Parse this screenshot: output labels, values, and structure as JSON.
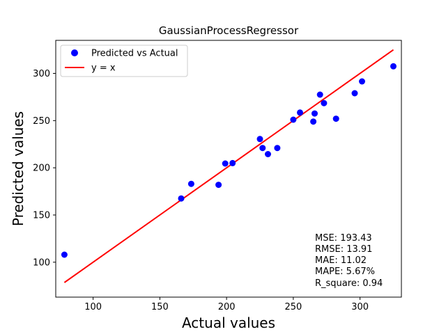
{
  "chart_data": {
    "type": "scatter",
    "title": "GaussianProcessRegressor",
    "xlabel": "Actual values",
    "ylabel": "Predicted values",
    "xlim": [
      72,
      331
    ],
    "ylim": [
      63,
      335
    ],
    "xticks": [
      100,
      150,
      200,
      250,
      300
    ],
    "yticks": [
      100,
      150,
      200,
      250,
      300
    ],
    "grid": false,
    "legend_position": "top-left",
    "series": [
      {
        "name": "Predicted vs Actual",
        "kind": "scatter",
        "color": "#0000ff",
        "points": [
          [
            78.5,
            108
          ],
          [
            166,
            167.5
          ],
          [
            173.5,
            183
          ],
          [
            194,
            182
          ],
          [
            199,
            204.5
          ],
          [
            204.5,
            205
          ],
          [
            225,
            230.5
          ],
          [
            227,
            221
          ],
          [
            231,
            214.5
          ],
          [
            238,
            221
          ],
          [
            250,
            251
          ],
          [
            255,
            258.5
          ],
          [
            265,
            249
          ],
          [
            266,
            257.5
          ],
          [
            270,
            277.5
          ],
          [
            273,
            268.5
          ],
          [
            282,
            252
          ],
          [
            296,
            279
          ],
          [
            301.5,
            291.5
          ],
          [
            325,
            307.5
          ]
        ]
      },
      {
        "name": "y = x",
        "kind": "line",
        "color": "#ff0000",
        "points": [
          [
            78.5,
            78.5
          ],
          [
            325,
            325
          ]
        ]
      }
    ],
    "metrics": [
      "MSE: 193.43",
      "RMSE: 13.91",
      "MAE: 11.02",
      "MAPE: 5.67%",
      "R_square: 0.94"
    ]
  }
}
